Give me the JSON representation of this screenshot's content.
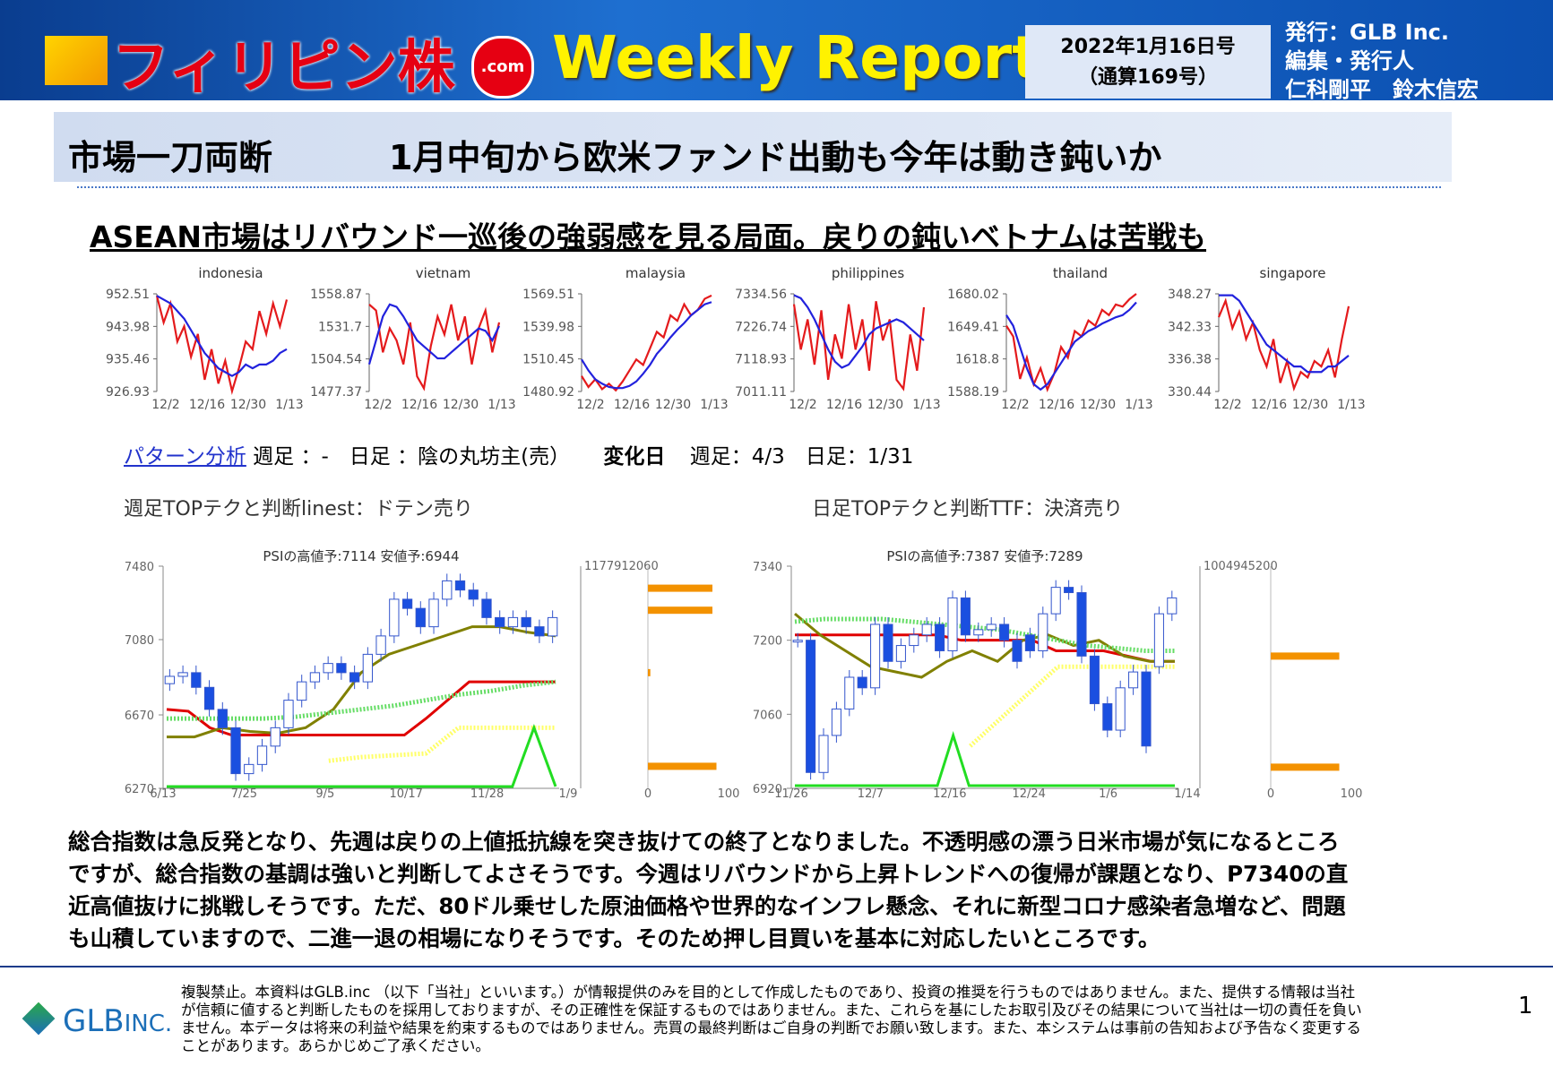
{
  "header": {
    "brand": "フィリピン株",
    "brand_suffix": ".com",
    "report": "Weekly Report",
    "date": "2022年1月16日号",
    "issue": "（通算169号）",
    "publisher": "発行：GLB Inc.",
    "editor_role": "編集・発行人",
    "editors": "仁科剛平　鈴木信宏"
  },
  "section": {
    "label": "市場一刀両断",
    "headline": "1月中旬から欧米ファンド出動も今年は動き鈍いか"
  },
  "subtitle": "ASEAN市場はリバウンド一巡後の強弱感を見る局面。戻りの鈍いベトナムは苦戦も",
  "mini_charts": [
    {
      "title": "indonesia",
      "ylim": [
        926.93,
        952.51
      ],
      "yticks": [
        952.51,
        943.98,
        935.46,
        926.93
      ],
      "xticks": [
        "12/2",
        "12/16",
        "12/30",
        "1/13"
      ],
      "series": [
        {
          "color": "#e41a1c",
          "values": [
            952,
            945,
            950,
            940,
            944,
            936,
            942,
            930,
            938,
            929,
            935,
            927,
            933,
            940,
            938,
            948,
            942,
            950,
            944,
            951
          ]
        },
        {
          "color": "#2222dd",
          "values": [
            952,
            951,
            950,
            948,
            946,
            943,
            940,
            937,
            935,
            933,
            932,
            931,
            932,
            934,
            933,
            934,
            934,
            935,
            937,
            938
          ]
        }
      ]
    },
    {
      "title": "vietnam",
      "ylim": [
        1477.37,
        1558.87
      ],
      "yticks": [
        1558.87,
        1531.7,
        1504.54,
        1477.37
      ],
      "xticks": [
        "12/2",
        "12/16",
        "12/30",
        "1/13"
      ],
      "series": [
        {
          "color": "#e41a1c",
          "values": [
            1550,
            1545,
            1510,
            1530,
            1520,
            1500,
            1535,
            1490,
            1480,
            1515,
            1540,
            1525,
            1550,
            1520,
            1540,
            1500,
            1530,
            1545,
            1510,
            1535
          ]
        },
        {
          "color": "#2222dd",
          "values": [
            1500,
            1520,
            1540,
            1550,
            1548,
            1540,
            1530,
            1520,
            1515,
            1510,
            1505,
            1505,
            1510,
            1515,
            1520,
            1525,
            1530,
            1528,
            1520,
            1532
          ]
        }
      ]
    },
    {
      "title": "malaysia",
      "ylim": [
        1480.92,
        1569.51
      ],
      "yticks": [
        1569.51,
        1539.98,
        1510.45,
        1480.92
      ],
      "xticks": [
        "12/2",
        "12/16",
        "12/30",
        "1/13"
      ],
      "series": [
        {
          "color": "#e41a1c",
          "values": [
            1495,
            1485,
            1492,
            1483,
            1488,
            1482,
            1490,
            1500,
            1510,
            1505,
            1520,
            1535,
            1530,
            1550,
            1545,
            1560,
            1550,
            1555,
            1565,
            1568
          ]
        },
        {
          "color": "#2222dd",
          "values": [
            1510,
            1500,
            1492,
            1488,
            1485,
            1484,
            1484,
            1486,
            1490,
            1497,
            1505,
            1515,
            1522,
            1530,
            1537,
            1543,
            1550,
            1555,
            1560,
            1562
          ]
        }
      ]
    },
    {
      "title": "philippines",
      "ylim": [
        7011.11,
        7334.56
      ],
      "yticks": [
        7334.56,
        7226.74,
        7118.93,
        7011.11
      ],
      "xticks": [
        "12/2",
        "12/16",
        "12/30",
        "1/13"
      ],
      "series": [
        {
          "color": "#e41a1c",
          "values": [
            7300,
            7150,
            7250,
            7100,
            7280,
            7050,
            7200,
            7120,
            7300,
            7150,
            7250,
            7080,
            7310,
            7180,
            7250,
            7050,
            7020,
            7200,
            7080,
            7290
          ]
        },
        {
          "color": "#2222dd",
          "values": [
            7330,
            7320,
            7290,
            7250,
            7200,
            7150,
            7110,
            7090,
            7100,
            7130,
            7160,
            7200,
            7220,
            7230,
            7240,
            7250,
            7240,
            7220,
            7200,
            7180
          ]
        }
      ]
    },
    {
      "title": "thailand",
      "ylim": [
        1588.19,
        1680.02
      ],
      "yticks": [
        1680.02,
        1649.41,
        1618.8,
        1588.19
      ],
      "xticks": [
        "12/2",
        "12/16",
        "12/30",
        "1/13"
      ],
      "series": [
        {
          "color": "#e41a1c",
          "values": [
            1650,
            1640,
            1600,
            1620,
            1595,
            1610,
            1590,
            1605,
            1630,
            1620,
            1645,
            1640,
            1655,
            1650,
            1665,
            1660,
            1670,
            1668,
            1675,
            1680
          ]
        },
        {
          "color": "#2222dd",
          "values": [
            1660,
            1650,
            1630,
            1610,
            1595,
            1590,
            1595,
            1605,
            1615,
            1625,
            1635,
            1640,
            1645,
            1648,
            1652,
            1655,
            1658,
            1660,
            1665,
            1672
          ]
        }
      ]
    },
    {
      "title": "singapore",
      "ylim": [
        330.44,
        348.27
      ],
      "yticks": [
        348.27,
        342.33,
        336.38,
        330.44
      ],
      "xticks": [
        "12/2",
        "12/16",
        "12/30",
        "1/13"
      ],
      "series": [
        {
          "color": "#e41a1c",
          "values": [
            344,
            347,
            342,
            345,
            340,
            343,
            338,
            335,
            340,
            332,
            336,
            331,
            334,
            333,
            336,
            335,
            338,
            333,
            340,
            346
          ]
        },
        {
          "color": "#2222dd",
          "values": [
            348,
            348,
            348,
            347,
            345,
            343,
            341,
            339,
            338,
            337,
            336,
            335,
            335,
            334,
            334,
            334,
            335,
            335,
            336,
            337
          ]
        }
      ]
    }
  ],
  "pattern": {
    "link": "パターン分析",
    "text": "週足 ：-　日足 ：陰の丸坊主(売）",
    "change_label": "変化日",
    "change_text": "週足：4/3　日足：1/31"
  },
  "weekly_judgement": "週足TOPテクと判断linest：ドテン売り",
  "daily_judgement": "日足TOPテクと判断TTF：決済売り",
  "candle_charts": [
    {
      "type": "candlestick",
      "title": "PSIの高値予:7114 安値予:6944",
      "ylim": [
        6270,
        7480
      ],
      "yticks": [
        7480,
        7080,
        6670,
        6270
      ],
      "xticks": [
        "6/13",
        "7/25",
        "9/5",
        "10/17",
        "11/28",
        "1/9"
      ],
      "volume_max": {
        "value": 1177912060,
        "label": "1177912060"
      },
      "profile_ticks": [
        0,
        100
      ],
      "open": [
        6840,
        6880,
        6900,
        6820,
        6700,
        6600,
        6350,
        6400,
        6500,
        6600,
        6750,
        6850,
        6900,
        6950,
        6900,
        6850,
        7000,
        7100,
        7300,
        7250,
        7150,
        7300,
        7400,
        7350,
        7300,
        7200,
        7150,
        7200,
        7150,
        7100
      ],
      "close": [
        6880,
        6900,
        6820,
        6700,
        6600,
        6350,
        6400,
        6500,
        6600,
        6750,
        6850,
        6900,
        6950,
        6900,
        6850,
        7000,
        7100,
        7300,
        7250,
        7150,
        7300,
        7400,
        7350,
        7300,
        7200,
        7150,
        7200,
        7150,
        7100,
        7200
      ],
      "lines": [
        {
          "color": "#e00000",
          "style": "solid",
          "values": [
            6700,
            6690,
            6600,
            6560,
            6560,
            6560,
            6560,
            6560,
            6560,
            6560,
            6560,
            6560,
            6650,
            6750,
            6850,
            6850,
            6850,
            6850,
            6850
          ]
        },
        {
          "color": "#808000",
          "style": "solid",
          "values": [
            6550,
            6550,
            6600,
            6580,
            6570,
            6600,
            6700,
            6900,
            7000,
            7050,
            7100,
            7150,
            7150,
            7120,
            7100
          ]
        },
        {
          "color": "#66dd66",
          "style": "dotted",
          "values": [
            6650,
            6650,
            6650,
            6650,
            6660,
            6680,
            6700,
            6720,
            6750,
            6780,
            6800,
            6830,
            6850
          ]
        },
        {
          "color": "#ffff66",
          "style": "dotted",
          "values": [
            null,
            null,
            null,
            null,
            null,
            6420,
            6440,
            6450,
            6460,
            6600,
            6600,
            6600,
            6600
          ]
        },
        {
          "color": "#22dd22",
          "style": "solid",
          "values": [
            6280,
            6280,
            6280,
            6280,
            6280,
            6280,
            6280,
            6280,
            6280,
            6280,
            6280,
            6280,
            6280,
            6280,
            6280,
            6280,
            6280,
            6600,
            6280
          ]
        }
      ],
      "profile": [
        {
          "y": 7360,
          "v": 80
        },
        {
          "y": 7240,
          "v": 80
        },
        {
          "y": 6900,
          "v": 3
        },
        {
          "y": 6390,
          "v": 85
        }
      ]
    },
    {
      "type": "candlestick",
      "title": "PSIの高値予:7387 安値予:7289",
      "ylim": [
        6920,
        7340
      ],
      "yticks": [
        7340,
        7200,
        7060,
        6920
      ],
      "xticks": [
        "11/26",
        "12/7",
        "12/16",
        "12/24",
        "1/6",
        "1/14"
      ],
      "volume_max": {
        "value": 1004945200,
        "label": "1004945200"
      },
      "profile_ticks": [
        0,
        100
      ],
      "open": [
        7200,
        7200,
        6950,
        7020,
        7070,
        7130,
        7110,
        7230,
        7160,
        7190,
        7210,
        7230,
        7180,
        7280,
        7210,
        7220,
        7230,
        7200,
        7210,
        7180,
        7250,
        7300,
        7290,
        7170,
        7080,
        7030,
        7110,
        7140,
        7150,
        7250
      ],
      "close": [
        7200,
        6950,
        7020,
        7070,
        7130,
        7110,
        7230,
        7160,
        7190,
        7210,
        7230,
        7180,
        7280,
        7210,
        7220,
        7230,
        7200,
        7160,
        7180,
        7250,
        7300,
        7290,
        7170,
        7080,
        7030,
        7110,
        7140,
        7000,
        7250,
        7280
      ],
      "lines": [
        {
          "color": "#e00000",
          "style": "solid",
          "values": [
            7210,
            7210,
            7210,
            7210,
            7210,
            7210,
            7210,
            7200,
            7200,
            7200,
            7200,
            7180,
            7180,
            7180,
            7170,
            7160,
            7160
          ]
        },
        {
          "color": "#808000",
          "style": "solid",
          "values": [
            7250,
            7210,
            7180,
            7150,
            7140,
            7130,
            7160,
            7180,
            7160,
            7200,
            7210,
            7190,
            7200,
            7170,
            7160,
            7160
          ]
        },
        {
          "color": "#66dd66",
          "style": "dotted",
          "values": [
            7235,
            7240,
            7240,
            7240,
            7235,
            7230,
            7225,
            7220,
            7210,
            7200,
            7190,
            7185,
            7180,
            7180
          ]
        },
        {
          "color": "#ffff66",
          "style": "dotted",
          "values": [
            null,
            null,
            null,
            null,
            null,
            null,
            7000,
            7050,
            7100,
            7150,
            7150,
            7150,
            7150,
            7150
          ]
        },
        {
          "color": "#22dd22",
          "style": "solid",
          "values": [
            6925,
            6925,
            6925,
            6925,
            6925,
            6925,
            6925,
            6925,
            6925,
            6925,
            7020,
            6925,
            6925,
            6925,
            6925,
            6925,
            6925,
            6925,
            6925,
            6925,
            6925,
            6925,
            6925,
            6925,
            6925
          ]
        }
      ],
      "profile": [
        {
          "y": 7170,
          "v": 85
        },
        {
          "y": 6960,
          "v": 85
        }
      ]
    }
  ],
  "body": [
    "総合指数は急反発となり、先週は戻りの上値抵抗線を突き抜けての終了となりました。不透明感の漂う日米市場が気になるところ",
    "ですが、総合指数の基調は強いと判断してよさそうです。今週はリバウンドから上昇トレンドへの復帰が課題となり、P7340の直",
    "近高値抜けに挑戦しそうです。ただ、80ドル乗せした原油価格や世界的なインフレ懸念、それに新型コロナ感染者急増など、問題",
    "も山積していますので、二進一退の相場になりそうです。そのため押し目買いを基本に対応したいところです。"
  ],
  "footer": {
    "logo": "GLB",
    "logo_suffix": "INC.",
    "disclaimer": [
      "複製禁止。本資料はGLB.inc （以下「当社」といいます。）が情報提供のみを目的として作成したものであり、投資の推奨を行うものではありません。また、提供する情報は当社",
      "が信頼に値すると判断したものを採用しておりますが、その正確性を保証するものではありません。また、これらを基にしたお取引及びその結果について当社は一切の責任を負い",
      "ません。本データは将来の利益や結果を約束するものではありません。売買の最終判断はご自身の判断でお願い致します。また、本システムは事前の告知および予告なく変更する",
      "ことがあります。あらかじめご了承ください。"
    ],
    "page": "1"
  }
}
